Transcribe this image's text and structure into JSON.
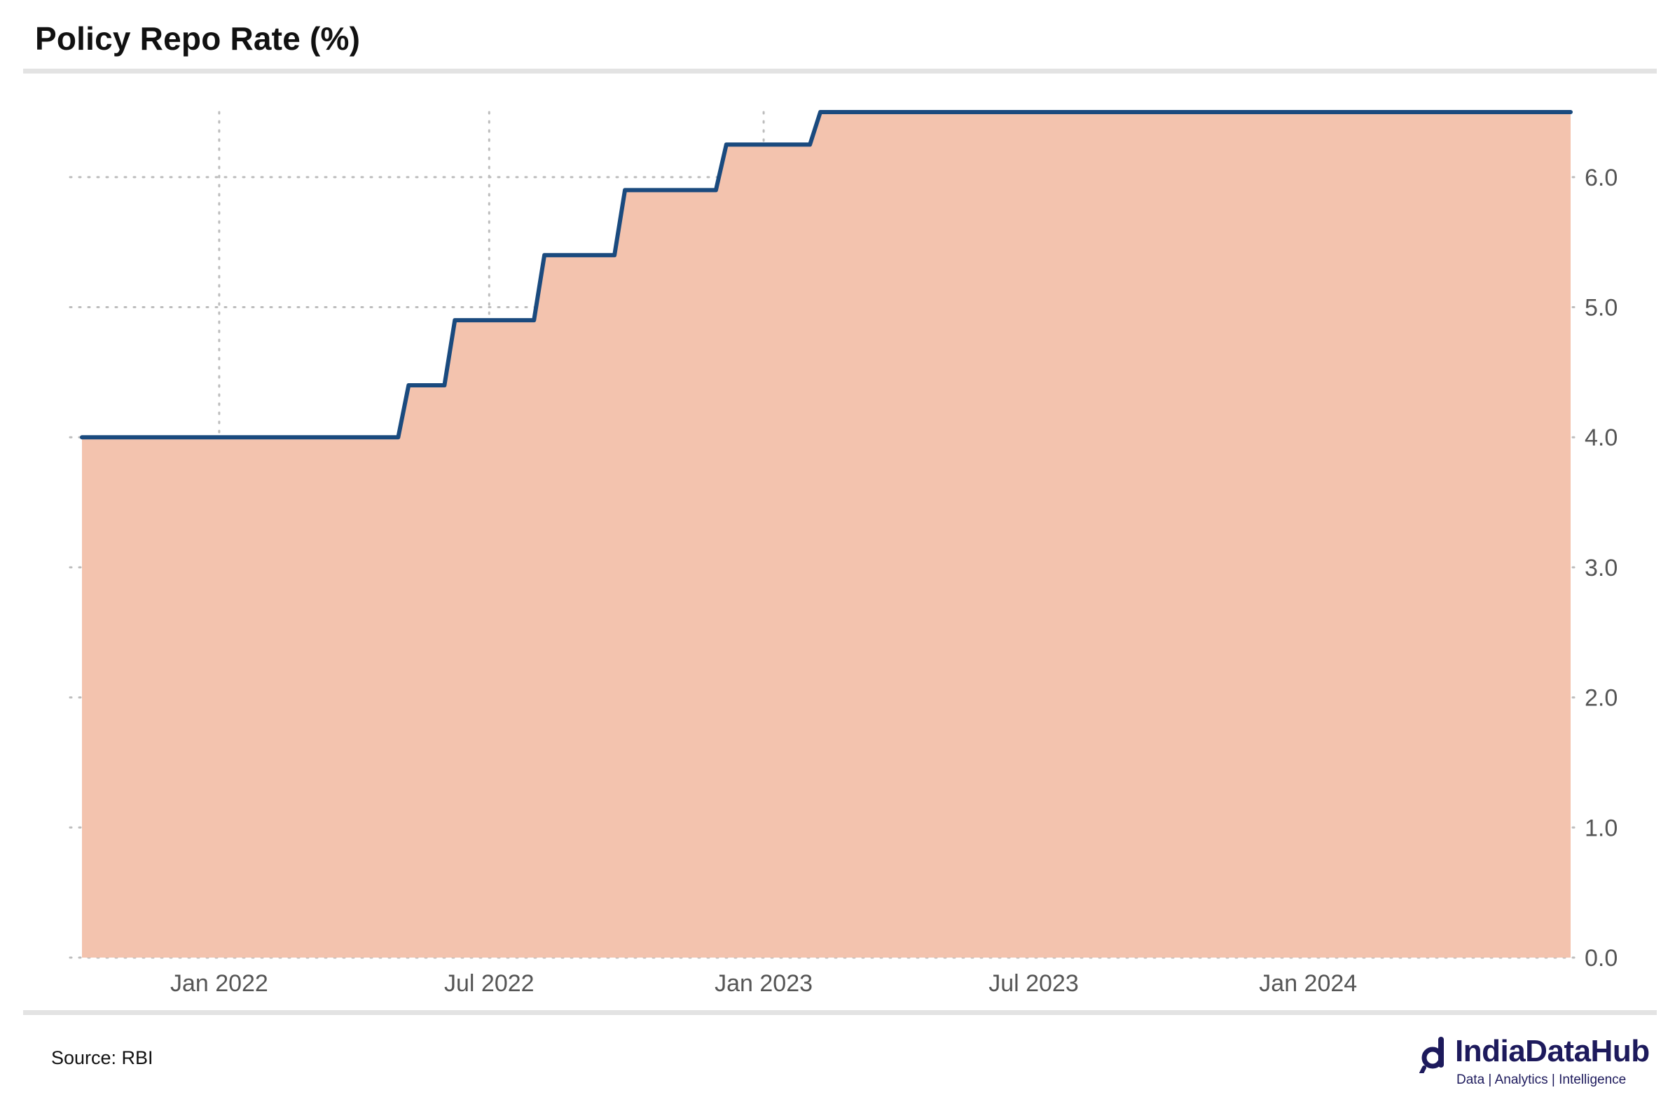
{
  "title": "Policy Repo Rate (%)",
  "source": "Source: RBI",
  "logo": {
    "name": "IndiaDataHub",
    "tagline": "Data | Analytics | Intelligence"
  },
  "colors": {
    "line": "#1a4a7e",
    "fill": "#f3c3ae",
    "grid": "#bdbdbd",
    "text": "#555555",
    "logo": "#1d1a5c"
  },
  "chart_data": {
    "type": "area",
    "title": "Policy Repo Rate (%)",
    "xlabel": "",
    "ylabel": "",
    "y_axis_position": "right",
    "grid": true,
    "grid_style": "dotted",
    "xlim": [
      "2021-10-01",
      "2024-06-25"
    ],
    "ylim": [
      0,
      6.5
    ],
    "x_ticks": [
      {
        "date": "2022-01-01",
        "label": "Jan 2022"
      },
      {
        "date": "2022-07-01",
        "label": "Jul 2022"
      },
      {
        "date": "2023-01-01",
        "label": "Jan 2023"
      },
      {
        "date": "2023-07-01",
        "label": "Jul 2023"
      },
      {
        "date": "2024-01-01",
        "label": "Jan 2024"
      }
    ],
    "y_ticks": [
      {
        "value": 0,
        "label": "0.0"
      },
      {
        "value": 1,
        "label": "1.0"
      },
      {
        "value": 2,
        "label": "2.0"
      },
      {
        "value": 3,
        "label": "3.0"
      },
      {
        "value": 4,
        "label": "4.0"
      },
      {
        "value": 5,
        "label": "5.0"
      },
      {
        "value": 6,
        "label": "6.0"
      }
    ],
    "series": [
      {
        "points": [
          {
            "x": "2021-10-01",
            "y": 4.0
          },
          {
            "x": "2022-05-01",
            "y": 4.0
          },
          {
            "x": "2022-05-08",
            "y": 4.4
          },
          {
            "x": "2022-06-01",
            "y": 4.4
          },
          {
            "x": "2022-06-08",
            "y": 4.9
          },
          {
            "x": "2022-07-31",
            "y": 4.9
          },
          {
            "x": "2022-08-07",
            "y": 5.4
          },
          {
            "x": "2022-09-23",
            "y": 5.4
          },
          {
            "x": "2022-09-30",
            "y": 5.9
          },
          {
            "x": "2022-11-30",
            "y": 5.9
          },
          {
            "x": "2022-12-07",
            "y": 6.25
          },
          {
            "x": "2023-02-01",
            "y": 6.25
          },
          {
            "x": "2023-02-08",
            "y": 6.5
          },
          {
            "x": "2024-06-25",
            "y": 6.5
          }
        ]
      }
    ]
  }
}
